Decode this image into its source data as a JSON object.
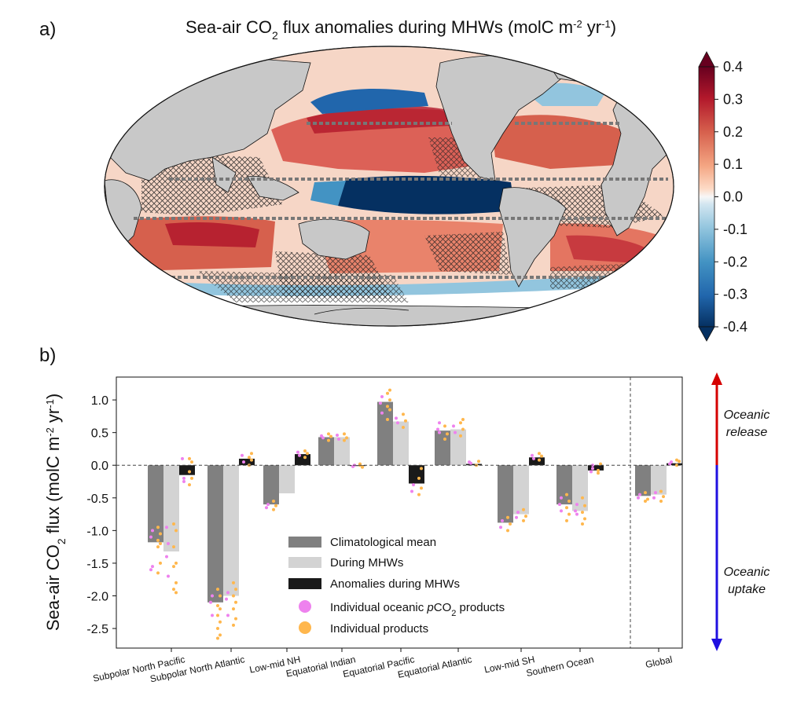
{
  "panel_a": {
    "label": "a)",
    "title": "Sea-air CO",
    "title_sub": "2",
    "title_rest": " flux anomalies during MHWs (molC m",
    "title_sup1": "-2",
    "title_mid": " yr",
    "title_sup2": "-1",
    "title_end": ")",
    "colorbar": {
      "ticks": [
        "0.4",
        "0.3",
        "0.2",
        "0.1",
        "0.0",
        "-0.1",
        "-0.2",
        "-0.3",
        "-0.4"
      ],
      "range": [
        -0.4,
        0.4
      ],
      "colors_high": "#67001f",
      "colors_low": "#053061"
    }
  },
  "panel_b": {
    "label": "b)",
    "ylabel_a": "Sea-air CO",
    "ylabel_sub": "2",
    "ylabel_b": " flux (molC m",
    "ylabel_sup1": "-2",
    "ylabel_c": " yr",
    "ylabel_sup2": "-1",
    "ylabel_d": ")",
    "arrow_up": [
      "Oceanic",
      "release"
    ],
    "arrow_down": [
      "Oceanic",
      "uptake"
    ],
    "legend": [
      {
        "label": "Climatological mean",
        "kind": "bar",
        "color": "#808080"
      },
      {
        "label": "During MHWs",
        "kind": "bar",
        "color": "#d3d3d3"
      },
      {
        "label": "Anomalies during MHWs",
        "kind": "bar",
        "color": "#1a1a1a"
      },
      {
        "label_pre": "Individual oceanic ",
        "label_italic": "p",
        "label_post": "CO",
        "label_sub": "2",
        "label_end": " products",
        "kind": "dot",
        "color": "#ee82ee"
      },
      {
        "label": "Individual products",
        "kind": "dot",
        "color": "#ffb74d"
      }
    ]
  },
  "chart_data": {
    "type": "bar",
    "ylim": [
      -2.8,
      1.35
    ],
    "yticks": [
      "1.0",
      "0.5",
      "0.0",
      "-0.5",
      "-1.0",
      "-1.5",
      "-2.0",
      "-2.5"
    ],
    "ytick_values": [
      1.0,
      0.5,
      0.0,
      -0.5,
      -1.0,
      -1.5,
      -2.0,
      -2.5
    ],
    "categories": [
      "Subpolar North Pacific",
      "Subpolar North Atlantic",
      "Low-mid NH",
      "Equatorial Indian",
      "Equatorial Pacific",
      "Equatorial Atlantic",
      "Low-mid SH",
      "Southern Ocean",
      "Global"
    ],
    "series": [
      {
        "name": "Climatological mean",
        "color": "#808080",
        "values": [
          -1.18,
          -2.1,
          -0.6,
          0.43,
          0.97,
          0.53,
          -0.88,
          -0.6,
          -0.47
        ]
      },
      {
        "name": "During MHWs",
        "color": "#d3d3d3",
        "values": [
          -1.32,
          -2.0,
          -0.43,
          0.43,
          0.67,
          0.55,
          -0.75,
          -0.7,
          -0.45
        ]
      },
      {
        "name": "Anomalies during MHWs",
        "color": "#1a1a1a",
        "values": [
          -0.15,
          0.1,
          0.17,
          0.0,
          -0.28,
          0.02,
          0.12,
          -0.08,
          0.03
        ]
      }
    ],
    "individual_products": [
      {
        "category": 0,
        "series": 0,
        "magenta": [
          -1.0,
          -1.1,
          -1.55,
          -1.6
        ],
        "orange": [
          -0.95,
          -1.05,
          -1.15,
          -1.2,
          -1.25,
          -1.5,
          -1.65
        ]
      },
      {
        "category": 0,
        "series": 1,
        "magenta": [
          -1.2,
          -1.4,
          -1.7,
          -0.95
        ],
        "orange": [
          -0.9,
          -1.0,
          -1.25,
          -1.5,
          -1.55,
          -1.8,
          -1.9,
          -1.95
        ]
      },
      {
        "category": 0,
        "series": 2,
        "magenta": [
          -0.2,
          0.1,
          -0.25
        ],
        "orange": [
          -0.1,
          -0.2,
          -0.3,
          0.05,
          0.1
        ]
      },
      {
        "category": 1,
        "series": 0,
        "magenta": [
          -2.0,
          -2.1,
          -2.3
        ],
        "orange": [
          -1.9,
          -2.0,
          -2.15,
          -2.2,
          -2.3,
          -2.4,
          -2.5,
          -2.6,
          -2.65
        ]
      },
      {
        "category": 1,
        "series": 1,
        "magenta": [
          -1.95,
          -2.05,
          -2.3
        ],
        "orange": [
          -1.8,
          -1.9,
          -2.0,
          -2.1,
          -2.2,
          -2.35,
          -2.45
        ]
      },
      {
        "category": 1,
        "series": 2,
        "magenta": [
          0.05,
          0.15
        ],
        "orange": [
          0.0,
          0.08,
          0.12,
          0.18
        ]
      },
      {
        "category": 2,
        "series": 0,
        "magenta": [
          -0.6,
          -0.65
        ],
        "orange": [
          -0.55,
          -0.62,
          -0.68
        ]
      },
      {
        "category": 2,
        "series": 2,
        "magenta": [
          0.15,
          0.2
        ],
        "orange": [
          0.12,
          0.18,
          0.22
        ]
      },
      {
        "category": 3,
        "series": 0,
        "magenta": [
          0.42,
          0.45
        ],
        "orange": [
          0.38,
          0.44,
          0.48
        ]
      },
      {
        "category": 3,
        "series": 1,
        "magenta": [
          0.4,
          0.46
        ],
        "orange": [
          0.38,
          0.42,
          0.48
        ]
      },
      {
        "category": 3,
        "series": 2,
        "magenta": [
          0.0,
          -0.02
        ],
        "orange": [
          0.02,
          -0.03,
          0.0
        ]
      },
      {
        "category": 4,
        "series": 0,
        "magenta": [
          0.8,
          0.95,
          1.05
        ],
        "orange": [
          0.7,
          0.85,
          0.9,
          1.0,
          1.1,
          1.15
        ]
      },
      {
        "category": 4,
        "series": 1,
        "magenta": [
          0.65,
          0.72
        ],
        "orange": [
          0.58,
          0.68,
          0.78
        ]
      },
      {
        "category": 4,
        "series": 2,
        "magenta": [
          -0.3,
          -0.4
        ],
        "orange": [
          -0.2,
          -0.35,
          -0.45,
          -0.05
        ]
      },
      {
        "category": 5,
        "series": 0,
        "magenta": [
          0.5,
          0.55,
          0.65
        ],
        "orange": [
          0.4,
          0.48,
          0.6
        ]
      },
      {
        "category": 5,
        "series": 1,
        "magenta": [
          0.5,
          0.6
        ],
        "orange": [
          0.45,
          0.55,
          0.65,
          0.7
        ]
      },
      {
        "category": 5,
        "series": 2,
        "magenta": [
          0.03,
          0.05
        ],
        "orange": [
          0.0,
          0.06
        ]
      },
      {
        "category": 6,
        "series": 0,
        "magenta": [
          -0.85,
          -0.95
        ],
        "orange": [
          -0.8,
          -0.9,
          -1.0
        ]
      },
      {
        "category": 6,
        "series": 1,
        "magenta": [
          -0.72,
          -0.8
        ],
        "orange": [
          -0.68,
          -0.78,
          -0.85
        ]
      },
      {
        "category": 6,
        "series": 2,
        "magenta": [
          0.1,
          0.15
        ],
        "orange": [
          0.08,
          0.14,
          0.18
        ]
      },
      {
        "category": 7,
        "series": 0,
        "magenta": [
          -0.5,
          -0.6,
          -0.7
        ],
        "orange": [
          -0.45,
          -0.55,
          -0.65,
          -0.75,
          -0.85
        ]
      },
      {
        "category": 7,
        "series": 1,
        "magenta": [
          -0.6,
          -0.7,
          -0.75
        ],
        "orange": [
          -0.5,
          -0.62,
          -0.72,
          -0.82,
          -0.9
        ]
      },
      {
        "category": 7,
        "series": 2,
        "magenta": [
          -0.05,
          -0.1,
          0.0
        ],
        "orange": [
          -0.12,
          0.02,
          -0.08
        ]
      },
      {
        "category": 8,
        "series": 0,
        "magenta": [
          -0.45,
          -0.5
        ],
        "orange": [
          -0.42,
          -0.52,
          -0.55
        ]
      },
      {
        "category": 8,
        "series": 1,
        "magenta": [
          -0.42,
          -0.5
        ],
        "orange": [
          -0.4,
          -0.48,
          -0.55
        ]
      },
      {
        "category": 8,
        "series": 2,
        "magenta": [
          0.05,
          0.02
        ],
        "orange": [
          0.0,
          0.06,
          0.08
        ]
      }
    ]
  }
}
